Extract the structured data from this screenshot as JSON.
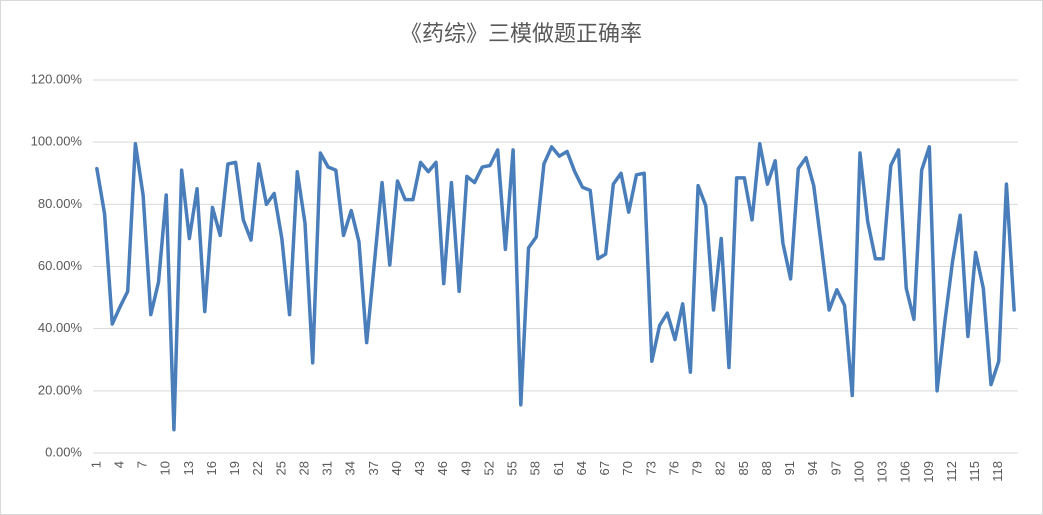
{
  "chart_data": {
    "type": "line",
    "title": "《药综》三模做题正确率",
    "categories": [
      "1",
      null,
      null,
      "4",
      null,
      null,
      "7",
      null,
      null,
      "10",
      null,
      null,
      "13",
      null,
      null,
      "16",
      null,
      null,
      "19",
      null,
      null,
      "22",
      null,
      null,
      "25",
      null,
      null,
      "28",
      null,
      null,
      "31",
      null,
      null,
      "34",
      null,
      null,
      "37",
      null,
      null,
      "40",
      null,
      null,
      "43",
      null,
      null,
      "46",
      null,
      null,
      "49",
      null,
      null,
      "52",
      null,
      null,
      "55",
      null,
      null,
      "58",
      null,
      null,
      "61",
      null,
      null,
      "64",
      null,
      null,
      "67",
      null,
      null,
      "70",
      null,
      null,
      "73",
      null,
      null,
      "76",
      null,
      null,
      "79",
      null,
      null,
      "82",
      null,
      null,
      "85",
      null,
      null,
      "88",
      null,
      null,
      "91",
      null,
      null,
      "94",
      null,
      null,
      "97",
      null,
      null,
      "100",
      null,
      null,
      "103",
      null,
      null,
      "106",
      null,
      null,
      "109",
      null,
      null,
      "112",
      null,
      null,
      "115",
      null,
      null,
      "118",
      null,
      null
    ],
    "values": [
      91.5,
      77,
      41.5,
      47,
      52,
      99.5,
      83,
      44.5,
      55,
      83,
      7.5,
      91,
      69,
      85,
      45.5,
      79,
      70,
      93,
      93.5,
      75,
      68.5,
      93,
      80,
      83.5,
      69,
      44.5,
      90.5,
      74,
      29,
      96.5,
      92,
      91,
      70,
      78,
      68,
      35.5,
      61,
      87,
      60.5,
      87.5,
      81.5,
      81.5,
      93.5,
      90.5,
      93.5,
      54.5,
      87,
      52,
      89,
      87,
      92,
      92.5,
      97.5,
      65.5,
      97.5,
      15.5,
      66,
      69.5,
      93,
      98.5,
      95.5,
      97,
      90.5,
      85.5,
      84.5,
      62.5,
      64,
      86.5,
      90,
      77.5,
      89.5,
      90,
      29.5,
      41,
      45,
      36.5,
      48,
      26,
      86,
      79.5,
      46,
      69,
      27.5,
      88.5,
      88.5,
      75,
      99.5,
      86.5,
      94,
      67.5,
      56,
      91.5,
      95,
      86,
      66.5,
      46,
      52.5,
      47.5,
      18.5,
      96.5,
      74.5,
      62.5,
      62.5,
      92.5,
      97.5,
      53,
      43,
      91,
      98.5,
      20,
      42,
      61.5,
      76.5,
      37.5,
      64.5,
      53,
      22,
      29.5,
      86.5,
      46
    ],
    "color": "#4a7ebb",
    "ylim": [
      0,
      120
    ],
    "yticks": [
      {
        "value": 0,
        "label": "0.00%"
      },
      {
        "value": 20,
        "label": "20.00%"
      },
      {
        "value": 40,
        "label": "40.00%"
      },
      {
        "value": 60,
        "label": "60.00%"
      },
      {
        "value": 80,
        "label": "80.00%"
      },
      {
        "value": 100,
        "label": "100.00%"
      },
      {
        "value": 120,
        "label": "120.00%"
      }
    ],
    "grid": true
  }
}
